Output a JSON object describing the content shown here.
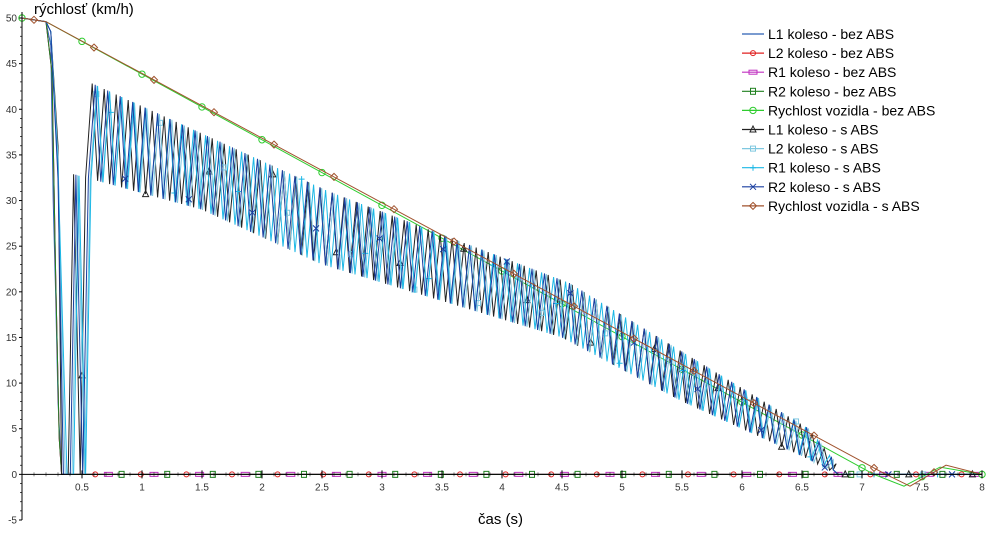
{
  "chart_data": {
    "type": "line",
    "ylabel": "rýchlosť (km/h)",
    "xlabel": "čas (s)",
    "xlim": [
      0,
      8
    ],
    "ylim": [
      -5,
      50
    ],
    "x_ticks": [
      "0.5",
      "1",
      "1.5",
      "2",
      "2.5",
      "3",
      "3.5",
      "4",
      "4.5",
      "5",
      "5.5",
      "6",
      "6.5",
      "7",
      "7.5",
      "8"
    ],
    "y_ticks": [
      "-5",
      "0",
      "5",
      "10",
      "15",
      "20",
      "25",
      "30",
      "35",
      "40",
      "45",
      "50"
    ],
    "legend_position": "top-right",
    "series": [
      {
        "name": "L1 koleso - bez ABS",
        "color": "#2b5fb4",
        "marker": "line",
        "style": "dive"
      },
      {
        "name": "L2 koleso - bez ABS",
        "color": "#e02020",
        "marker": "circle",
        "style": "zero"
      },
      {
        "name": "R1 koleso - bez ABS",
        "color": "#c030c0",
        "marker": "rect",
        "style": "zero"
      },
      {
        "name": "R2 koleso - bez ABS",
        "color": "#208020",
        "marker": "square",
        "style": "zero"
      },
      {
        "name": "Rychlost vozidla - bez ABS",
        "color": "#2ecc2e",
        "marker": "circle-lg",
        "style": "vehicle",
        "points": [
          [
            0,
            50
          ],
          [
            0.2,
            49.6
          ],
          [
            7.1,
            0
          ],
          [
            7.35,
            -1.3
          ],
          [
            7.65,
            0.8
          ],
          [
            8,
            0
          ]
        ]
      },
      {
        "name": "L1 koleso - s ABS",
        "color": "#222222",
        "marker": "triangle",
        "style": "abs"
      },
      {
        "name": "L2 koleso - s ABS",
        "color": "#7fc8e0",
        "marker": "square-open",
        "style": "abs"
      },
      {
        "name": "R1 koleso - s ABS",
        "color": "#1cb8e6",
        "marker": "plus",
        "style": "abs"
      },
      {
        "name": "R2 koleso - s ABS",
        "color": "#1a3fa0",
        "marker": "x",
        "style": "abs"
      },
      {
        "name": "Rychlost vozidla - s ABS",
        "color": "#a0522d",
        "marker": "diamond",
        "style": "vehicle",
        "points": [
          [
            0,
            50
          ],
          [
            0.2,
            49.6
          ],
          [
            7.2,
            0
          ],
          [
            7.4,
            -1.3
          ],
          [
            7.7,
            1.0
          ],
          [
            8,
            0
          ]
        ]
      }
    ],
    "abs_peaks": [
      [
        0.5,
        43
      ],
      [
        1.5,
        37
      ],
      [
        2.5,
        31
      ],
      [
        3.5,
        26
      ],
      [
        4.5,
        21
      ],
      [
        5.5,
        13
      ],
      [
        6.5,
        5
      ],
      [
        6.8,
        0
      ]
    ],
    "abs_troughs": [
      [
        0.4,
        33
      ],
      [
        1.5,
        29
      ],
      [
        2.5,
        23
      ],
      [
        3.5,
        19
      ],
      [
        4.5,
        15
      ],
      [
        5.5,
        8
      ],
      [
        6.5,
        2
      ],
      [
        6.8,
        0
      ]
    ]
  }
}
